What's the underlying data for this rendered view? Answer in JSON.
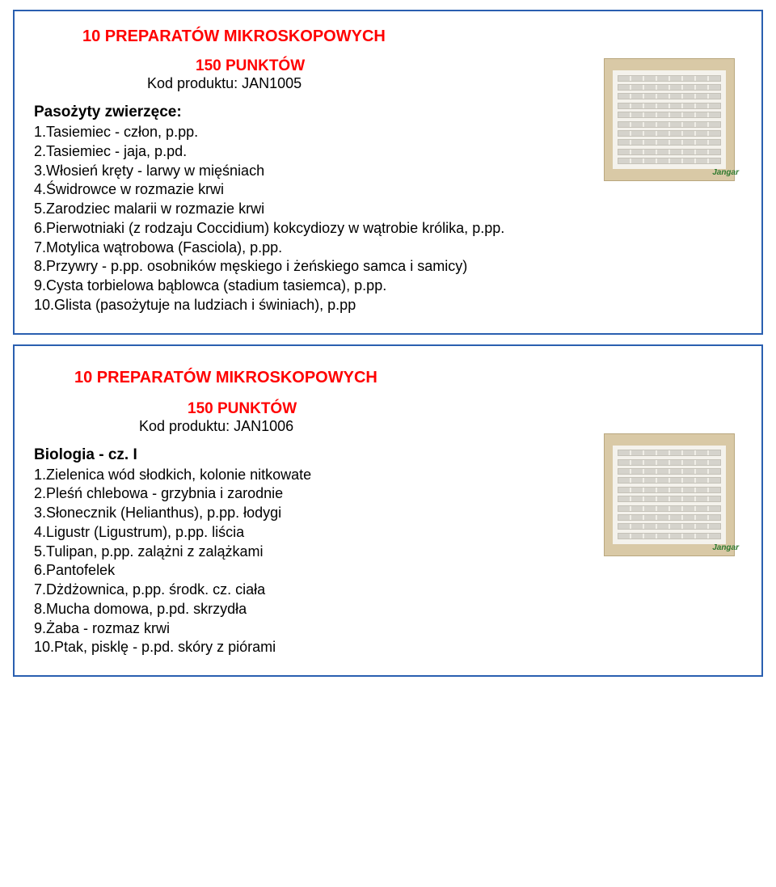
{
  "card1": {
    "title": "10 PREPARATÓW MIKROSKOPOWYCH",
    "points": "150 PUNKTÓW",
    "kod": "Kod produktu: JAN1005",
    "subhead": "Pasożyty zwierzęce:",
    "items": [
      "1.Tasiemiec - człon, p.pp.",
      "2.Tasiemiec - jaja, p.pd.",
      "3.Włosień kręty - larwy w mięśniach",
      "4.Świdrowce w rozmazie krwi",
      "5.Zarodziec malarii w rozmazie krwi",
      "6.Pierwotniaki (z rodzaju Coccidium) kokcydiozy w wątrobie królika, p.pp.",
      "7.Motylica wątrobowa (Fasciola), p.pp.",
      "8.Przywry - p.pp. osobników męskiego i żeńskiego samca i samicy)",
      "9.Cysta torbielowa bąblowca (stadium tasiemca), p.pp.",
      "10.Glista (pasożytuje na ludziach i świniach), p.pp"
    ],
    "thumb_logo": "Jangar"
  },
  "card2": {
    "title": "10 PREPARATÓW MIKROSKOPOWYCH",
    "points": "150 PUNKTÓW",
    "kod": "Kod produktu: JAN1006",
    "subhead": "Biologia - cz. I",
    "items": [
      "1.Zielenica wód słodkich, kolonie nitkowate",
      "2.Pleśń chlebowa - grzybnia i zarodnie",
      "3.Słonecznik (Helianthus), p.pp. łodygi",
      "4.Ligustr (Ligustrum), p.pp. liścia",
      "5.Tulipan, p.pp. zalążni z zalążkami",
      "6.Pantofelek",
      "7.Dżdżownica, p.pp. środk. cz. ciała",
      "8.Mucha domowa, p.pd. skrzydła",
      "9.Żaba - rozmaz krwi",
      "10.Ptak, pisklę - p.pd. skóry z piórami"
    ],
    "thumb_logo": "Jangar"
  },
  "colors": {
    "border": "#2a5fb0",
    "red": "#ff0000",
    "text": "#000000"
  }
}
